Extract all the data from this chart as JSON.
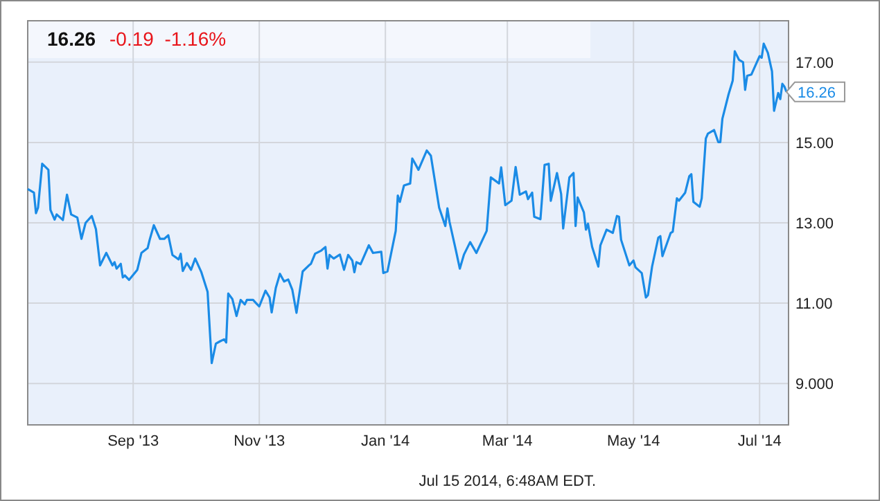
{
  "chart_data": {
    "type": "line",
    "title": "16.26",
    "subtitle": "-0.19  -1.16%",
    "annotations": [
      {
        "text": "16.26",
        "x": "2014-07-14",
        "y": 16.26
      },
      "Jul 15 2014, 6:48AM EDT."
    ],
    "x": [
      "2013-07-12",
      "2013-07-15",
      "2013-07-16",
      "2013-07-17",
      "2013-07-19",
      "2013-07-22",
      "2013-07-23",
      "2013-07-25",
      "2013-07-26",
      "2013-07-29",
      "2013-07-31",
      "2013-08-02",
      "2013-08-05",
      "2013-08-07",
      "2013-08-09",
      "2013-08-12",
      "2013-08-14",
      "2013-08-16",
      "2013-08-19",
      "2013-08-22",
      "2013-08-23",
      "2013-08-24",
      "2013-08-26",
      "2013-08-27",
      "2013-08-28",
      "2013-08-30",
      "2013-09-03",
      "2013-09-05",
      "2013-09-08",
      "2013-09-09",
      "2013-09-11",
      "2013-09-14",
      "2013-09-16",
      "2013-09-18",
      "2013-09-20",
      "2013-09-23",
      "2013-09-24",
      "2013-09-25",
      "2013-09-27",
      "2013-09-29",
      "2013-10-01",
      "2013-10-04",
      "2013-10-07",
      "2013-10-09",
      "2013-10-11",
      "2013-10-13",
      "2013-10-15",
      "2013-10-16",
      "2013-10-17",
      "2013-10-19",
      "2013-10-21",
      "2013-10-23",
      "2013-10-25",
      "2013-10-26",
      "2013-10-29",
      "2013-10-31",
      "2013-11-01",
      "2013-11-04",
      "2013-11-06",
      "2013-11-07",
      "2013-11-09",
      "2013-11-11",
      "2013-11-13",
      "2013-11-15",
      "2013-11-17",
      "2013-11-19",
      "2013-11-22",
      "2013-11-25",
      "2013-11-26",
      "2013-11-28",
      "2013-12-01",
      "2013-12-03",
      "2013-12-04",
      "2013-12-05",
      "2013-12-07",
      "2013-12-10",
      "2013-12-12",
      "2013-12-14",
      "2013-12-16",
      "2013-12-17",
      "2013-12-18",
      "2013-12-20",
      "2013-12-24",
      "2013-12-26",
      "2013-12-30",
      "2013-12-31",
      "2014-01-02",
      "2014-01-06",
      "2014-01-07",
      "2014-01-08",
      "2014-01-10",
      "2014-01-13",
      "2014-01-14",
      "2014-01-15",
      "2014-01-17",
      "2014-01-21",
      "2014-01-23",
      "2014-01-27",
      "2014-01-30",
      "2014-01-31",
      "2014-02-01",
      "2014-02-04",
      "2014-02-06",
      "2014-02-08",
      "2014-02-11",
      "2014-02-14",
      "2014-02-19",
      "2014-02-21",
      "2014-02-25",
      "2014-02-26",
      "2014-02-28",
      "2014-03-03",
      "2014-03-05",
      "2014-03-07",
      "2014-03-10",
      "2014-03-11",
      "2014-03-13",
      "2014-03-14",
      "2014-03-17",
      "2014-03-19",
      "2014-03-21",
      "2014-03-22",
      "2014-03-25",
      "2014-03-27",
      "2014-03-28",
      "2014-03-31",
      "2014-04-02",
      "2014-04-03",
      "2014-04-04",
      "2014-04-07",
      "2014-04-08",
      "2014-04-09",
      "2014-04-11",
      "2014-04-14",
      "2014-04-15",
      "2014-04-18",
      "2014-04-21",
      "2014-04-23",
      "2014-04-24",
      "2014-04-25",
      "2014-04-29",
      "2014-05-01",
      "2014-05-02",
      "2014-05-05",
      "2014-05-07",
      "2014-05-08",
      "2014-05-10",
      "2014-05-13",
      "2014-05-14",
      "2014-05-15",
      "2014-05-19",
      "2014-05-20",
      "2014-05-22",
      "2014-05-23",
      "2014-05-26",
      "2014-05-28",
      "2014-05-29",
      "2014-05-30",
      "2014-06-02",
      "2014-06-03",
      "2014-06-05",
      "2014-06-06",
      "2014-06-09",
      "2014-06-11",
      "2014-06-12",
      "2014-06-13",
      "2014-06-16",
      "2014-06-18",
      "2014-06-19",
      "2014-06-21",
      "2014-06-23",
      "2014-06-24",
      "2014-06-25",
      "2014-06-27",
      "2014-07-01",
      "2014-07-02",
      "2014-07-03",
      "2014-07-05",
      "2014-07-07",
      "2014-07-08",
      "2014-07-10",
      "2014-07-11",
      "2014-07-12",
      "2014-07-13",
      "2014-07-14"
    ],
    "series": [
      {
        "color": "#1a8be6",
        "values": [
          13.84,
          13.75,
          13.24,
          13.38,
          14.47,
          14.32,
          13.32,
          13.08,
          13.21,
          13.07,
          13.7,
          13.21,
          13.13,
          12.6,
          13.0,
          13.17,
          12.84,
          11.94,
          12.25,
          11.94,
          12.02,
          11.86,
          11.98,
          11.64,
          11.69,
          11.58,
          11.83,
          12.25,
          12.37,
          12.58,
          12.94,
          12.6,
          12.6,
          12.69,
          12.2,
          12.09,
          12.23,
          11.8,
          12.0,
          11.83,
          12.11,
          11.77,
          11.28,
          9.51,
          9.99,
          10.05,
          10.1,
          10.02,
          11.24,
          11.1,
          10.68,
          11.08,
          10.97,
          11.08,
          11.08,
          10.97,
          10.92,
          11.31,
          11.14,
          10.77,
          11.38,
          11.73,
          11.54,
          11.59,
          11.33,
          10.76,
          11.79,
          11.94,
          11.98,
          12.23,
          12.31,
          12.4,
          11.86,
          12.2,
          12.11,
          12.21,
          11.83,
          12.2,
          12.06,
          11.77,
          12.02,
          11.97,
          12.44,
          12.25,
          12.28,
          11.75,
          11.79,
          12.8,
          13.68,
          13.52,
          13.93,
          13.98,
          14.6,
          14.51,
          14.32,
          14.8,
          14.67,
          13.38,
          12.92,
          13.36,
          13.03,
          12.34,
          11.86,
          12.21,
          12.52,
          12.25,
          12.8,
          14.13,
          13.98,
          14.38,
          13.44,
          13.55,
          14.39,
          13.7,
          13.78,
          13.59,
          13.75,
          13.15,
          13.09,
          14.44,
          14.47,
          13.55,
          14.24,
          13.72,
          12.86,
          14.13,
          14.24,
          12.92,
          13.63,
          13.26,
          12.83,
          12.98,
          12.4,
          11.91,
          12.44,
          12.83,
          12.75,
          13.17,
          13.15,
          12.58,
          11.94,
          12.06,
          11.89,
          11.75,
          11.14,
          11.2,
          11.91,
          12.63,
          12.67,
          12.17,
          12.75,
          12.78,
          13.61,
          13.55,
          13.75,
          14.16,
          14.21,
          13.52,
          13.4,
          13.61,
          15.1,
          15.22,
          15.31,
          15.01,
          15.01,
          15.59,
          16.2,
          16.54,
          17.27,
          17.06,
          17.0,
          16.31,
          16.66,
          16.69,
          17.15,
          17.11,
          17.46,
          17.23,
          16.77,
          15.79,
          16.23,
          16.08,
          16.46,
          16.39,
          16.26
        ]
      }
    ],
    "xlim": [
      "2013-07-12",
      "2014-07-15"
    ],
    "xticks": [
      {
        "value": "2013-09-01",
        "label": "Sep '13"
      },
      {
        "value": "2013-11-01",
        "label": "Nov '13"
      },
      {
        "value": "2014-01-01",
        "label": "Jan '14"
      },
      {
        "value": "2014-03-01",
        "label": "Mar '14"
      },
      {
        "value": "2014-05-01",
        "label": "May '14"
      },
      {
        "value": "2014-07-01",
        "label": "Jul '14"
      }
    ],
    "ylim": [
      7.97,
      18.03
    ],
    "yticks": [
      {
        "value": 9,
        "label": "9.000"
      },
      {
        "value": 11,
        "label": "11.00"
      },
      {
        "value": 13,
        "label": "13.00"
      },
      {
        "value": 15,
        "label": "15.00"
      },
      {
        "value": 17,
        "label": "17.00"
      }
    ],
    "grid": true,
    "marker": "none",
    "line_style": "solid"
  }
}
